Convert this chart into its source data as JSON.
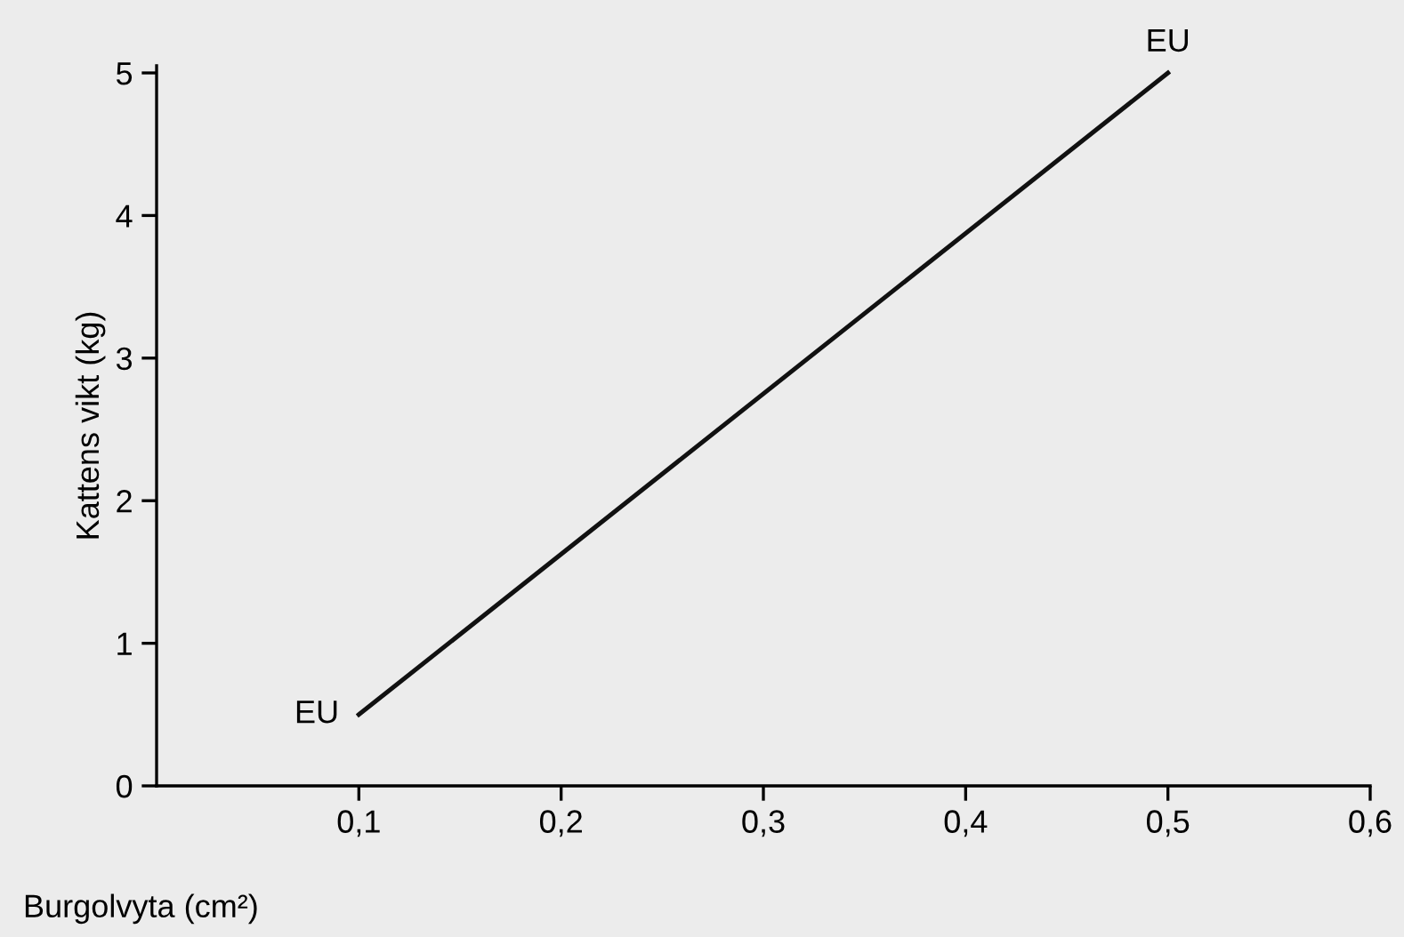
{
  "chart_data": {
    "type": "line",
    "xlabel": "Burgolvyta (cm²)",
    "ylabel": "Kattens vikt (kg)",
    "x": [
      0.1,
      0.5
    ],
    "series": [
      {
        "color": "#111111",
        "values": [
          0.5,
          5
        ]
      }
    ],
    "xlim": [
      0,
      0.6
    ],
    "ylim": [
      0,
      5.05
    ],
    "xticks": [
      {
        "value": 0.1,
        "label": "0,1"
      },
      {
        "value": 0.2,
        "label": "0,2"
      },
      {
        "value": 0.3,
        "label": "0,3"
      },
      {
        "value": 0.4,
        "label": "0,4"
      },
      {
        "value": 0.5,
        "label": "0,5"
      },
      {
        "value": 0.6,
        "label": "0,6"
      }
    ],
    "yticks": [
      0,
      1,
      2,
      3,
      4,
      5
    ],
    "annotations": [
      {
        "text": "EU",
        "x": 0.1,
        "y": 0.5
      },
      {
        "text": "EU",
        "x": 0.5,
        "y": 5
      }
    ],
    "grid": false,
    "legend": false,
    "marker": "none",
    "line_style": "solid"
  }
}
